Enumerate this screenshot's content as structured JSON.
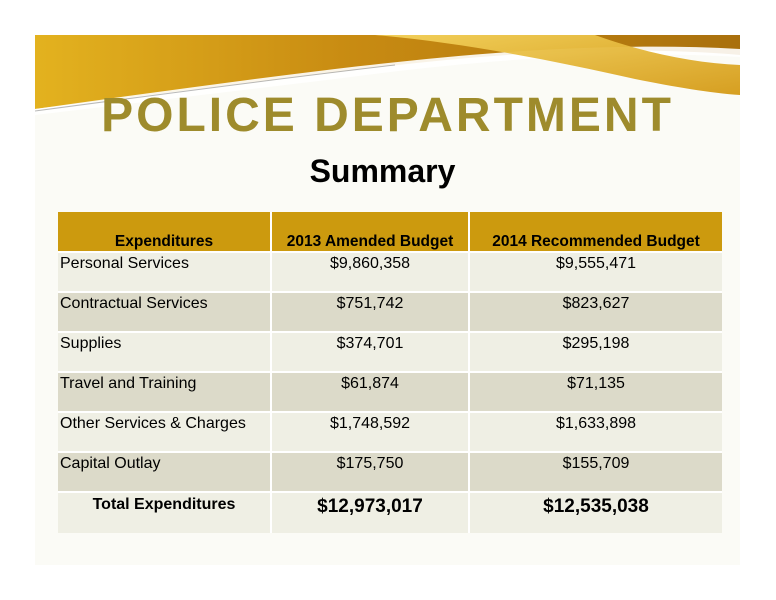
{
  "slide": {
    "title": "POLICE DEPARTMENT",
    "subtitle": "Summary",
    "colors": {
      "title": "#9e8b2c",
      "header_fill": "#cc9a0e",
      "row_light": "#efefe4",
      "row_dark": "#dcdac9",
      "banner_gold": "#d4a01a"
    }
  },
  "table": {
    "headers": [
      "Expenditures",
      "2013 Amended Budget",
      "2014 Recommended Budget"
    ],
    "rows": [
      {
        "label": "Personal Services",
        "y2013": "$9,860,358",
        "y2014": "$9,555,471"
      },
      {
        "label": "Contractual Services",
        "y2013": "$751,742",
        "y2014": "$823,627"
      },
      {
        "label": "Supplies",
        "y2013": "$374,701",
        "y2014": "$295,198"
      },
      {
        "label": "Travel and Training",
        "y2013": "$61,874",
        "y2014": "$71,135"
      },
      {
        "label": "Other Services & Charges",
        "y2013": "$1,748,592",
        "y2014": "$1,633,898"
      },
      {
        "label": "Capital Outlay",
        "y2013": "$175,750",
        "y2014": "$155,709"
      }
    ],
    "total": {
      "label": "Total Expenditures",
      "y2013": "$12,973,017",
      "y2014": "$12,535,038"
    }
  }
}
